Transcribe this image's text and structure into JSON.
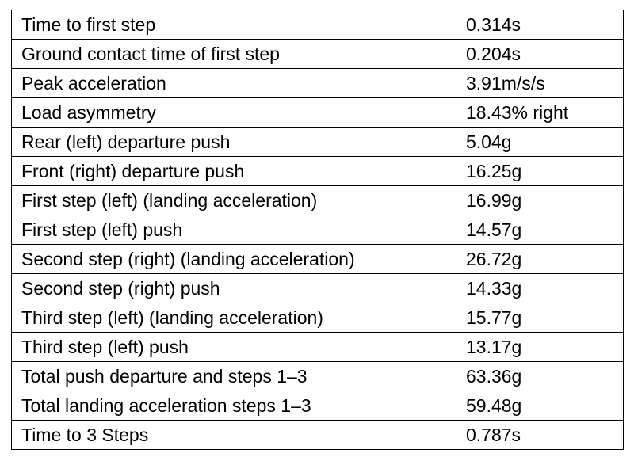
{
  "table": {
    "rows": [
      {
        "label": "Time to first step",
        "value": "0.314s"
      },
      {
        "label": "Ground contact time of first step",
        "value": "0.204s"
      },
      {
        "label": "Peak acceleration",
        "value": "3.91m/s/s"
      },
      {
        "label": "Load asymmetry",
        "value": "18.43% right"
      },
      {
        "label": "Rear (left) departure push",
        "value": "5.04g"
      },
      {
        "label": "Front (right) departure push",
        "value": "16.25g"
      },
      {
        "label": "First step (left) (landing acceleration)",
        "value": "16.99g"
      },
      {
        "label": "First step (left) push",
        "value": "14.57g"
      },
      {
        "label": "Second step (right) (landing acceleration)",
        "value": "26.72g"
      },
      {
        "label": "Second step (right) push",
        "value": "14.33g"
      },
      {
        "label": "Third step (left) (landing acceleration)",
        "value": "15.77g"
      },
      {
        "label": "Third step (left) push",
        "value": "13.17g"
      },
      {
        "label": "Total push departure and steps 1–3",
        "value": "63.36g"
      },
      {
        "label": "Total landing acceleration steps 1–3",
        "value": "59.48g"
      },
      {
        "label": "Time to 3 Steps",
        "value": "0.787s"
      }
    ]
  }
}
